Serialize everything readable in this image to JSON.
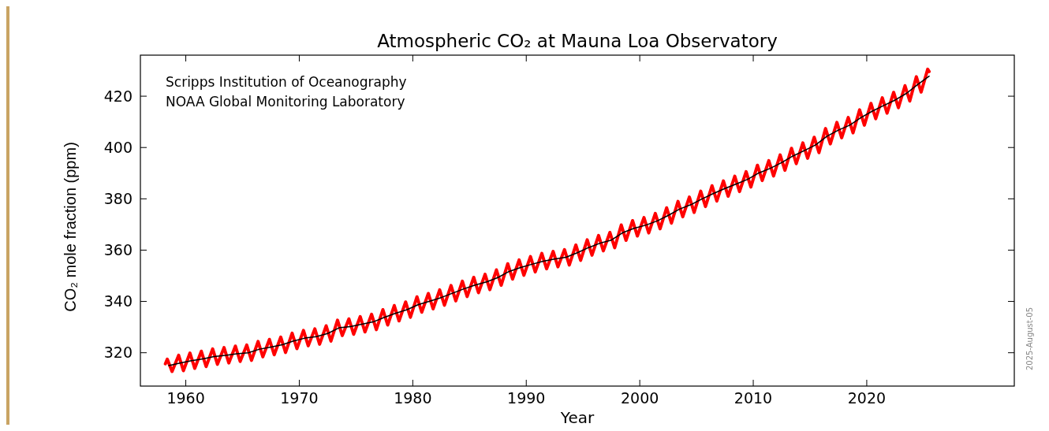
{
  "chart_data": {
    "type": "line",
    "title": "Atmospheric CO₂ at Mauna Loa Observatory",
    "xlabel": "Year",
    "ylabel": "CO₂ mole fraction (ppm)",
    "annotations": [
      "Scripps Institution of Oceanography",
      "NOAA Global Monitoring Laboratory",
      "2025-August-05"
    ],
    "xlim": [
      1956,
      2033
    ],
    "xticks": [
      1960,
      1970,
      1980,
      1990,
      2000,
      2010,
      2020
    ],
    "ylim": [
      307,
      436
    ],
    "yticks": [
      320,
      340,
      360,
      380,
      400,
      420
    ],
    "grid": false,
    "series": [
      {
        "color": "#ff0000",
        "x": [
          1958.2,
          1958.37,
          1958.79,
          1959.37,
          1959.79,
          1960.37,
          1960.79,
          1961.37,
          1961.79,
          1962.37,
          1962.79,
          1963.37,
          1963.79,
          1964.37,
          1964.79,
          1965.37,
          1965.79,
          1966.37,
          1966.79,
          1967.37,
          1967.79,
          1968.37,
          1968.79,
          1969.37,
          1969.79,
          1970.37,
          1970.79,
          1971.37,
          1971.79,
          1972.37,
          1972.79,
          1973.37,
          1973.79,
          1974.37,
          1974.79,
          1975.37,
          1975.79,
          1976.37,
          1976.79,
          1977.37,
          1977.79,
          1978.37,
          1978.79,
          1979.37,
          1979.79,
          1980.37,
          1980.79,
          1981.37,
          1981.79,
          1982.37,
          1982.79,
          1983.37,
          1983.79,
          1984.37,
          1984.79,
          1985.37,
          1985.79,
          1986.37,
          1986.79,
          1987.37,
          1987.79,
          1988.37,
          1988.79,
          1989.37,
          1989.79,
          1990.37,
          1990.79,
          1991.37,
          1991.79,
          1992.37,
          1992.79,
          1993.37,
          1993.79,
          1994.37,
          1994.79,
          1995.37,
          1995.79,
          1996.37,
          1996.79,
          1997.37,
          1997.79,
          1998.37,
          1998.79,
          1999.37,
          1999.79,
          2000.37,
          2000.79,
          2001.37,
          2001.79,
          2002.37,
          2002.79,
          2003.37,
          2003.79,
          2004.37,
          2004.79,
          2005.37,
          2005.79,
          2006.37,
          2006.79,
          2007.37,
          2007.79,
          2008.37,
          2008.79,
          2009.37,
          2009.79,
          2010.37,
          2010.79,
          2011.37,
          2011.79,
          2012.37,
          2012.79,
          2013.37,
          2013.79,
          2014.37,
          2014.79,
          2015.37,
          2015.79,
          2016.37,
          2016.79,
          2017.37,
          2017.79,
          2018.37,
          2018.79,
          2019.37,
          2019.79,
          2020.37,
          2020.79,
          2021.37,
          2021.79,
          2022.37,
          2022.79,
          2023.37,
          2023.79,
          2024.37,
          2024.79,
          2025.37,
          2025.5
        ],
        "values": [
          315.7,
          317.5,
          312.7,
          319.0,
          313.0,
          319.9,
          313.9,
          320.6,
          314.6,
          321.5,
          315.5,
          322.0,
          316.0,
          322.6,
          316.6,
          323.0,
          317.0,
          324.4,
          318.4,
          325.2,
          319.2,
          326.1,
          320.1,
          327.6,
          321.6,
          328.7,
          322.7,
          329.3,
          323.3,
          330.5,
          324.5,
          332.7,
          326.7,
          333.2,
          327.2,
          334.1,
          328.1,
          335.0,
          329.0,
          336.8,
          330.8,
          338.4,
          332.4,
          339.8,
          333.8,
          341.8,
          335.8,
          343.1,
          337.1,
          344.5,
          338.5,
          346.2,
          340.2,
          347.9,
          341.9,
          349.4,
          343.4,
          350.6,
          344.6,
          352.3,
          346.3,
          354.7,
          348.7,
          356.2,
          350.2,
          357.5,
          351.5,
          358.7,
          352.7,
          359.5,
          353.5,
          360.2,
          354.2,
          362.0,
          356.0,
          364.0,
          358.0,
          365.7,
          359.7,
          366.9,
          360.9,
          369.8,
          363.8,
          371.5,
          365.5,
          372.7,
          366.7,
          374.3,
          368.3,
          376.5,
          370.5,
          379.0,
          373.0,
          380.7,
          374.7,
          383.0,
          377.0,
          385.1,
          379.1,
          387.0,
          381.0,
          388.8,
          382.8,
          390.6,
          384.6,
          393.1,
          387.1,
          394.9,
          388.9,
          397.1,
          391.1,
          399.7,
          393.7,
          401.8,
          395.8,
          404.0,
          398.0,
          407.4,
          401.4,
          409.8,
          403.8,
          411.7,
          405.7,
          414.7,
          408.7,
          417.2,
          411.2,
          419.4,
          413.4,
          421.5,
          415.5,
          424.1,
          418.1,
          427.6,
          421.6,
          430.5,
          429.6
        ]
      },
      {
        "color": "#000000",
        "x": [
          1958.5,
          1959.5,
          1960.5,
          1961.5,
          1962.5,
          1963.5,
          1964.5,
          1965.5,
          1966.5,
          1967.5,
          1968.5,
          1969.5,
          1970.5,
          1971.5,
          1972.5,
          1973.5,
          1974.5,
          1975.5,
          1976.5,
          1977.5,
          1978.5,
          1979.5,
          1980.5,
          1981.5,
          1982.5,
          1983.5,
          1984.5,
          1985.5,
          1986.5,
          1987.5,
          1988.5,
          1989.5,
          1990.5,
          1991.5,
          1992.5,
          1993.5,
          1994.5,
          1995.5,
          1996.5,
          1997.5,
          1998.5,
          1999.5,
          2000.5,
          2001.5,
          2002.5,
          2003.5,
          2004.5,
          2005.5,
          2006.5,
          2007.5,
          2008.5,
          2009.5,
          2010.5,
          2011.5,
          2012.5,
          2013.5,
          2014.5,
          2015.5,
          2016.5,
          2017.5,
          2018.5,
          2019.5,
          2020.5,
          2021.5,
          2022.5,
          2023.5,
          2024.5,
          2025.5
        ],
        "values": [
          315.0,
          316.0,
          316.9,
          317.6,
          318.5,
          319.0,
          319.6,
          320.0,
          321.4,
          322.2,
          323.1,
          324.6,
          325.7,
          326.3,
          327.5,
          329.7,
          330.2,
          331.1,
          332.0,
          333.8,
          335.4,
          336.8,
          338.8,
          340.1,
          341.5,
          343.2,
          344.9,
          346.4,
          347.6,
          349.3,
          351.7,
          353.2,
          354.5,
          355.7,
          356.5,
          357.2,
          359.0,
          361.0,
          362.7,
          363.9,
          366.8,
          368.5,
          369.7,
          371.3,
          373.5,
          376.0,
          377.7,
          380.0,
          382.1,
          384.0,
          385.8,
          387.6,
          390.1,
          391.9,
          394.1,
          396.7,
          398.8,
          401.0,
          404.4,
          406.8,
          408.7,
          411.7,
          414.2,
          416.4,
          418.5,
          421.1,
          424.6,
          427.8
        ]
      }
    ]
  }
}
